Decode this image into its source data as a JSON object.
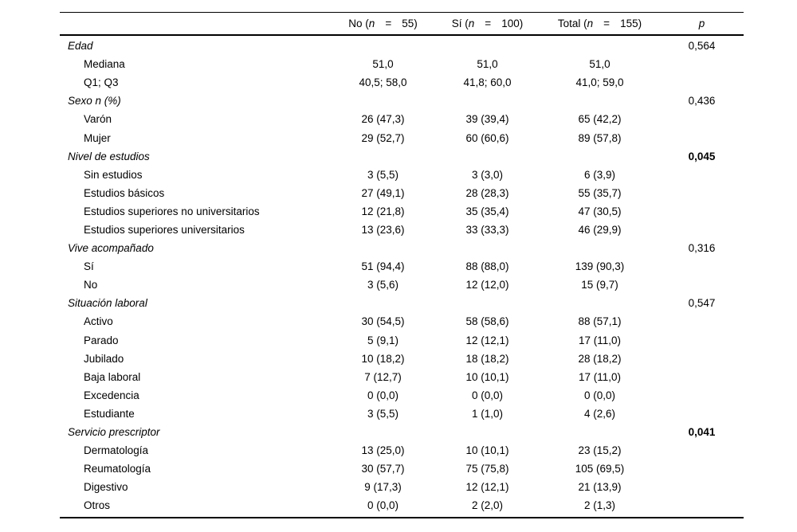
{
  "colors": {
    "background": "#ffffff",
    "text": "#000000",
    "rule": "#000000"
  },
  "table": {
    "columns": [
      {
        "pre": "No (",
        "var": "n",
        "eq": "=",
        "post": "55)"
      },
      {
        "pre": "Sí (",
        "var": "n",
        "eq": "=",
        "post": "100)"
      },
      {
        "pre": "Total (",
        "var": "n",
        "eq": "=",
        "post": "155)"
      },
      {
        "var": "p"
      }
    ],
    "rows": [
      {
        "label": "Edad",
        "group": true,
        "p": "0,564"
      },
      {
        "label": "Mediana",
        "values": [
          "51,0",
          "51,0",
          "51,0"
        ]
      },
      {
        "label": "Q1; Q3",
        "values": [
          "40,5; 58,0",
          "41,8; 60,0",
          "41,0; 59,0"
        ]
      },
      {
        "label": "Sexo n (%)",
        "group": true,
        "p": "0,436"
      },
      {
        "label": "Varón",
        "values": [
          "26 (47,3)",
          "39 (39,4)",
          "65 (42,2)"
        ]
      },
      {
        "label": "Mujer",
        "values": [
          "29 (52,7)",
          "60 (60,6)",
          "89 (57,8)"
        ]
      },
      {
        "label": "Nivel de estudios",
        "group": true,
        "p": "0,045",
        "p_bold": true
      },
      {
        "label": "Sin estudios",
        "values": [
          "3 (5,5)",
          "3 (3,0)",
          "6 (3,9)"
        ]
      },
      {
        "label": "Estudios básicos",
        "values": [
          "27 (49,1)",
          "28 (28,3)",
          "55 (35,7)"
        ]
      },
      {
        "label": "Estudios superiores no universitarios",
        "values": [
          "12 (21,8)",
          "35 (35,4)",
          "47 (30,5)"
        ]
      },
      {
        "label": "Estudios superiores universitarios",
        "values": [
          "13 (23,6)",
          "33 (33,3)",
          "46 (29,9)"
        ]
      },
      {
        "label": "Vive acompañado",
        "group": true,
        "p": "0,316"
      },
      {
        "label": "Sí",
        "values": [
          "51 (94,4)",
          "88 (88,0)",
          "139 (90,3)"
        ]
      },
      {
        "label": "No",
        "values": [
          "3 (5,6)",
          "12 (12,0)",
          "15 (9,7)"
        ]
      },
      {
        "label": "Situación laboral",
        "group": true,
        "p": "0,547"
      },
      {
        "label": "Activo",
        "values": [
          "30 (54,5)",
          "58 (58,6)",
          "88 (57,1)"
        ]
      },
      {
        "label": "Parado",
        "values": [
          "5 (9,1)",
          "12 (12,1)",
          "17 (11,0)"
        ]
      },
      {
        "label": "Jubilado",
        "values": [
          "10 (18,2)",
          "18 (18,2)",
          "28 (18,2)"
        ]
      },
      {
        "label": "Baja laboral",
        "values": [
          "7 (12,7)",
          "10 (10,1)",
          "17 (11,0)"
        ]
      },
      {
        "label": "Excedencia",
        "values": [
          "0 (0,0)",
          "0 (0,0)",
          "0 (0,0)"
        ]
      },
      {
        "label": "Estudiante",
        "values": [
          "3 (5,5)",
          "1 (1,0)",
          "4 (2,6)"
        ]
      },
      {
        "label": "Servicio prescriptor",
        "group": true,
        "p": "0,041",
        "p_bold": true
      },
      {
        "label": "Dermatología",
        "values": [
          "13 (25,0)",
          "10 (10,1)",
          "23 (15,2)"
        ]
      },
      {
        "label": "Reumatología",
        "values": [
          "30 (57,7)",
          "75 (75,8)",
          "105 (69,5)"
        ]
      },
      {
        "label": "Digestivo",
        "values": [
          "9 (17,3)",
          "12 (12,1)",
          "21 (13,9)"
        ]
      },
      {
        "label": "Otros",
        "values": [
          "0 (0,0)",
          "2 (2,0)",
          "2 (1,3)"
        ]
      }
    ]
  }
}
